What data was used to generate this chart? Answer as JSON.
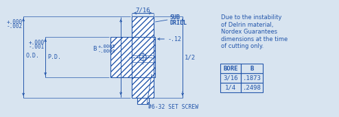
{
  "bg_color": "#d8e4f0",
  "line_color": "#2255aa",
  "text_color": "#2255aa",
  "note_text": [
    "Due to the instability",
    "of Delrin material,",
    "Nordex Guarantees",
    "dimensions at the time",
    "of cutting only."
  ],
  "table_headers": [
    "BORE",
    "B"
  ],
  "table_rows": [
    [
      "3/16",
      ".1873"
    ],
    [
      "1/4",
      ".2498"
    ]
  ],
  "od_tol": [
    "+.000",
    "-.002"
  ],
  "od_label": "O.D.",
  "pd_tol": [
    "+.000",
    "-.001"
  ],
  "pd_label": "P.D.",
  "b_label": "B",
  "b_tol": [
    "+.0005",
    "-.0000"
  ],
  "width_dim": "7/16",
  "sub_drill": [
    "SUB",
    "DRILL"
  ],
  "depth_dim": "-.12",
  "height_dim": "1/2",
  "set_screw": "#6-32 SET SCREW"
}
